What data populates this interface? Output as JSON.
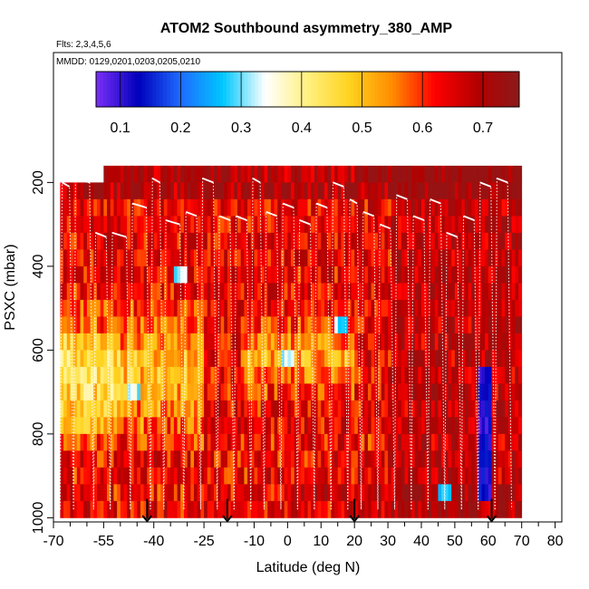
{
  "chart_data": {
    "type": "heatmap",
    "title": "ATOM2 Southbound asymmetry_380_AMP",
    "subtitle_flights": "Flts: 2,3,4,5,6",
    "subtitle_dates": "MMDD: 0129,0201,0203,0205,0210",
    "xlabel": "Latitude (deg N)",
    "ylabel": "PSXC (mbar)",
    "xlim": [
      -70,
      82
    ],
    "ylim": [
      1010,
      -110
    ],
    "y_inverted": true,
    "x_ticks": [
      -70,
      -55,
      -40,
      -25,
      -10,
      0,
      10,
      20,
      30,
      40,
      50,
      60,
      70,
      80
    ],
    "x_tick_labels": [
      "-70",
      "-55",
      "-40",
      "-25",
      "-10",
      "0",
      "10",
      "20",
      "30",
      "40",
      "50",
      "60",
      "70",
      "80"
    ],
    "x_minor_ticks": [
      -65,
      -60,
      -50,
      -45,
      -35,
      -30,
      -20,
      -15,
      -5,
      5,
      15,
      25,
      35,
      45,
      55,
      65,
      75
    ],
    "y_ticks": [
      200,
      400,
      600,
      800,
      1000
    ],
    "y_tick_labels": [
      "200",
      "400",
      "600",
      "800",
      "1000"
    ],
    "colorbar": {
      "range": [
        0.06,
        0.76
      ],
      "ticks": [
        0.1,
        0.2,
        0.3,
        0.4,
        0.5,
        0.6,
        0.7
      ],
      "tick_labels": [
        "0.1",
        "0.2",
        "0.3",
        "0.4",
        "0.5",
        "0.6",
        "0.7"
      ],
      "colors": [
        "#7b2ff7",
        "#0000bb",
        "#1e6bff",
        "#00c8ff",
        "#ffffff",
        "#fff080",
        "#ffd21e",
        "#ff8c00",
        "#ff0000",
        "#b40000",
        "#8c1a1a"
      ]
    },
    "data_lat_range": [
      -68,
      70
    ],
    "data_pressure_range": [
      160,
      1000
    ],
    "lat_bin_width": 1,
    "pressure_bin_height": 40,
    "profile_lats": [
      -68,
      -64,
      -58,
      -53,
      -47,
      -41,
      -37,
      -31,
      -26,
      -21,
      -16,
      -11,
      -7,
      -2,
      3,
      8,
      13,
      18,
      22,
      27,
      32,
      37,
      42,
      47,
      52,
      57,
      62,
      67
    ],
    "arrows_lat": [
      -42,
      -18,
      20,
      61
    ],
    "features": [
      {
        "lat": [
          57,
          61
        ],
        "p": [
          620,
          950
        ],
        "value": 0.12,
        "label": "low value column"
      },
      {
        "lat": [
          -34,
          -30
        ],
        "p": [
          380,
          420
        ],
        "value": 0.3
      },
      {
        "lat": [
          -48,
          -44
        ],
        "p": [
          660,
          720
        ],
        "value": 0.32
      },
      {
        "lat": [
          -2,
          2
        ],
        "p": [
          580,
          640
        ],
        "value": 0.33
      },
      {
        "lat": [
          14,
          18
        ],
        "p": [
          500,
          560
        ],
        "value": 0.3
      },
      {
        "lat": [
          45,
          49
        ],
        "p": [
          900,
          960
        ],
        "value": 0.26
      }
    ]
  }
}
